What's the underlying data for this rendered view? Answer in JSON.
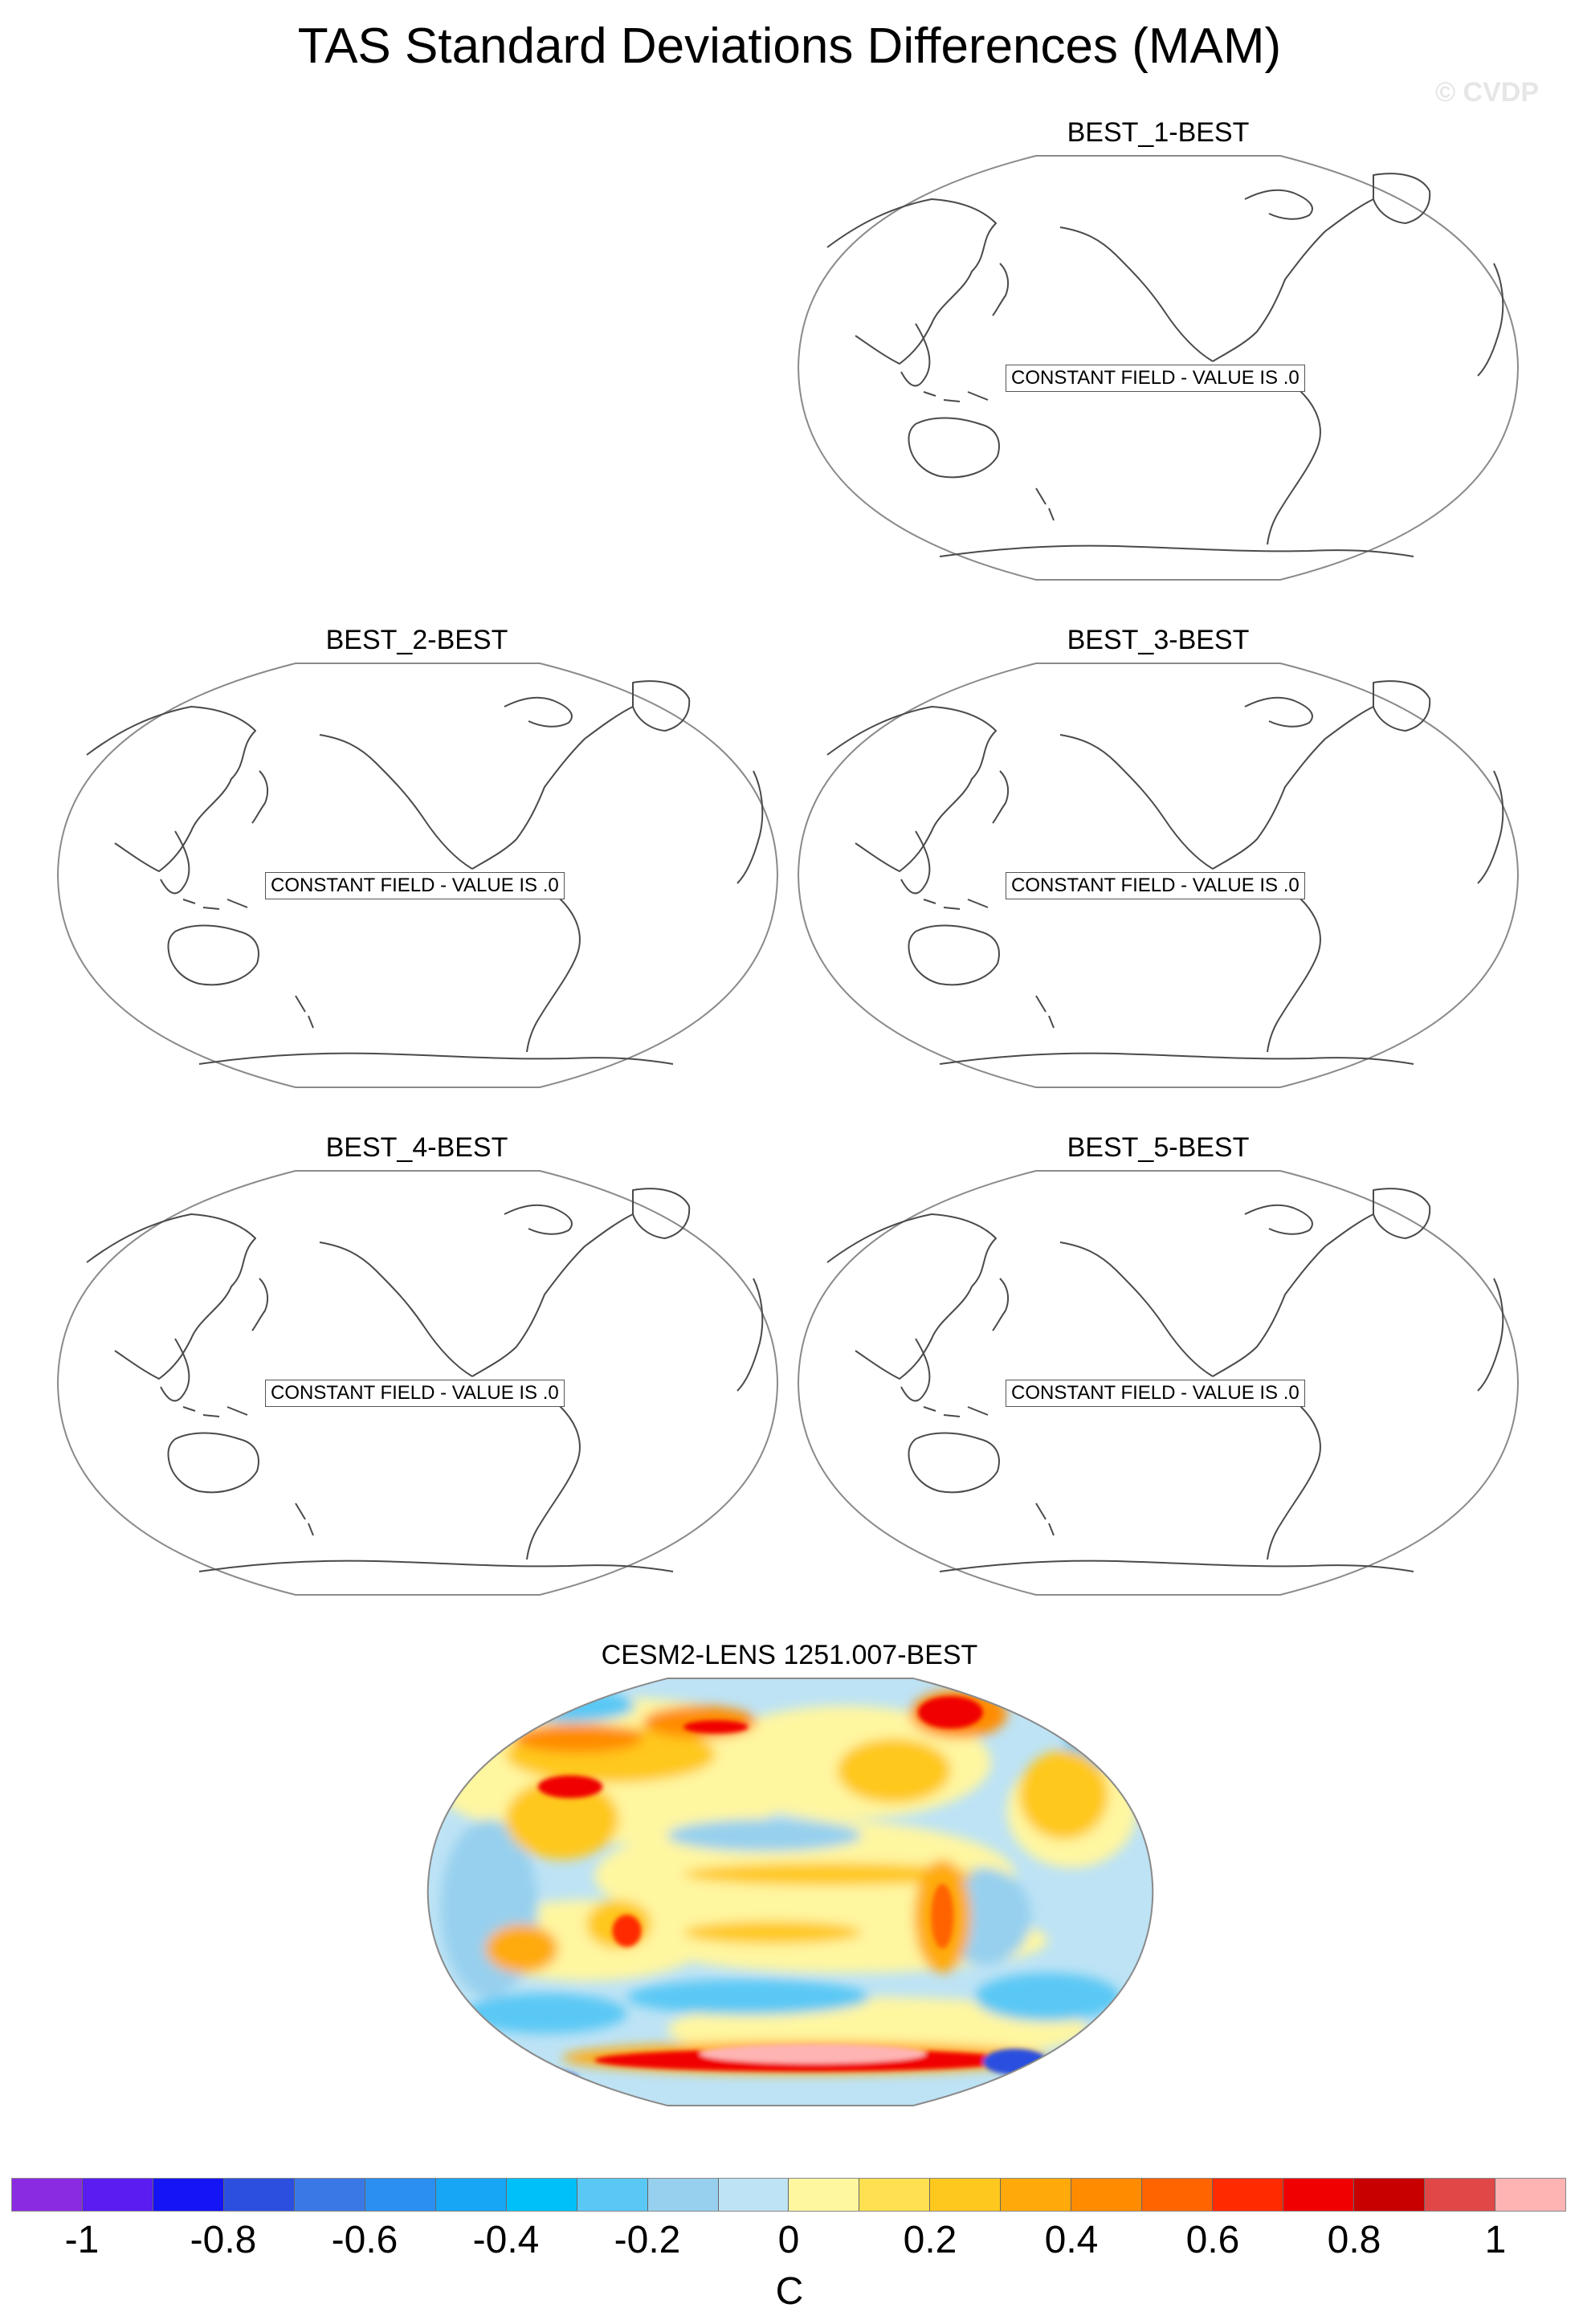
{
  "title": "TAS Standard Deviations Differences (MAM)",
  "watermark": "© CVDP",
  "panels": [
    {
      "title": "BEST_1-BEST",
      "message": "CONSTANT FIELD - VALUE IS .0"
    },
    {
      "title": "BEST_2-BEST",
      "message": "CONSTANT FIELD - VALUE IS .0"
    },
    {
      "title": "BEST_3-BEST",
      "message": "CONSTANT FIELD - VALUE IS .0"
    },
    {
      "title": "BEST_4-BEST",
      "message": "CONSTANT FIELD - VALUE IS .0"
    },
    {
      "title": "BEST_5-BEST",
      "message": "CONSTANT FIELD - VALUE IS .0"
    }
  ],
  "filled_panel": {
    "title": "CESM2-LENS 1251.007-BEST"
  },
  "colorbar": {
    "units": "C",
    "colors": [
      "#8a2be2",
      "#5a1cf0",
      "#1414f5",
      "#2c4fe0",
      "#3a78e6",
      "#2a8ff0",
      "#16a6f5",
      "#00c0fa",
      "#5ac8f5",
      "#96d0ee",
      "#bde3f5",
      "#fff6a0",
      "#ffe050",
      "#ffc81e",
      "#ffaa0a",
      "#ff8c00",
      "#ff6400",
      "#ff2a00",
      "#f00000",
      "#c80000",
      "#e04848",
      "#ffb4b4"
    ],
    "ticks": [
      "-1",
      "-0.8",
      "-0.6",
      "-0.4",
      "-0.2",
      "0",
      "0.2",
      "0.4",
      "0.6",
      "0.8",
      "1"
    ]
  }
}
